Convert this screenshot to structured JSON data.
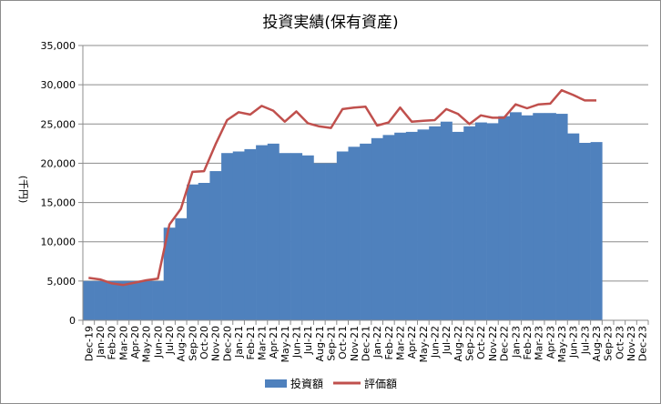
{
  "chart_data": {
    "type": "bar",
    "title": "投資実績(保有資産)",
    "ylabel": "(千円)",
    "xlabel": "",
    "ylim": [
      0,
      35000
    ],
    "yticks": [
      0,
      5000,
      10000,
      15000,
      20000,
      25000,
      30000,
      35000
    ],
    "ytick_labels": [
      "0",
      "5,000",
      "10,000",
      "15,000",
      "20,000",
      "25,000",
      "30,000",
      "35,000"
    ],
    "grid": true,
    "legend_position": "bottom",
    "categories": [
      "Dec-19",
      "Jan-20",
      "Feb-20",
      "Mar-20",
      "Apr-20",
      "May-20",
      "Jun-20",
      "Jul-20",
      "Aug-20",
      "Sep-20",
      "Oct-20",
      "Nov-20",
      "Dec-20",
      "Jan-21",
      "Feb-21",
      "Mar-21",
      "Apr-21",
      "May-21",
      "Jun-21",
      "Jul-21",
      "Aug-21",
      "Sep-21",
      "Oct-21",
      "Nov-21",
      "Dec-21",
      "Jan-22",
      "Feb-22",
      "Mar-22",
      "Apr-22",
      "May-22",
      "Jun-22",
      "Jul-22",
      "Aug-22",
      "Sep-22",
      "Oct-22",
      "Nov-22",
      "Dec-22",
      "Jan-23",
      "Feb-23",
      "Mar-23",
      "Apr-23",
      "May-23",
      "Jun-23",
      "Jul-23",
      "Aug-23",
      "Sep-23",
      "Oct-23",
      "Nov-23",
      "Dec-23"
    ],
    "series": [
      {
        "name": "投資額",
        "kind": "bar",
        "color": "#4f81bd",
        "values": [
          5000,
          5000,
          5000,
          5000,
          5000,
          5000,
          5000,
          11800,
          13000,
          17300,
          17500,
          19000,
          21300,
          21500,
          21800,
          22300,
          22500,
          21300,
          21300,
          21000,
          20000,
          20000,
          21500,
          22100,
          22500,
          23200,
          23600,
          23900,
          24000,
          24300,
          24700,
          25300,
          24000,
          24700,
          25200,
          25100,
          26000,
          26500,
          26100,
          26400,
          26400,
          26300,
          23800,
          22600,
          22700,
          null,
          null,
          null,
          null
        ]
      },
      {
        "name": "評価額",
        "kind": "line",
        "color": "#c0504d",
        "values": [
          5400,
          5200,
          4700,
          4500,
          4800,
          5100,
          5300,
          12200,
          14200,
          18900,
          19000,
          22400,
          25500,
          26500,
          26200,
          27300,
          26700,
          25300,
          26600,
          25100,
          24700,
          24500,
          26900,
          27100,
          27200,
          24800,
          25200,
          27100,
          25300,
          25400,
          25500,
          26900,
          26300,
          25000,
          26100,
          25800,
          25800,
          27500,
          27000,
          27500,
          27600,
          29300,
          28700,
          28000,
          28000,
          null,
          null,
          null,
          null
        ]
      }
    ]
  }
}
